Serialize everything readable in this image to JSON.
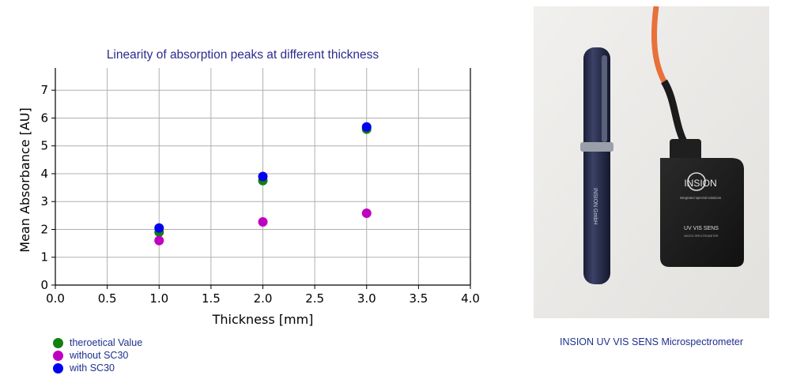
{
  "chart_data": {
    "type": "scatter",
    "title": "Linearity of absorption peaks at different thickness",
    "xlabel": "Thickness [mm]",
    "ylabel": "Mean Absorbance [AU]",
    "xlim": [
      0.0,
      4.0
    ],
    "ylim": [
      0,
      7.8
    ],
    "xticks": [
      "0.0",
      "0.5",
      "1.0",
      "1.5",
      "2.0",
      "2.5",
      "3.0",
      "3.5",
      "4.0"
    ],
    "yticks": [
      "0",
      "1",
      "2",
      "3",
      "4",
      "5",
      "6",
      "7"
    ],
    "grid": true,
    "legend_position": "bottom-left",
    "series": [
      {
        "name": "theroetical Value",
        "color": "#118011",
        "x": [
          1.0,
          2.0,
          3.0
        ],
        "y": [
          1.9,
          3.75,
          5.6
        ]
      },
      {
        "name": "without SC30",
        "color": "#c000c0",
        "x": [
          1.0,
          2.0,
          3.0
        ],
        "y": [
          1.6,
          2.27,
          2.58
        ]
      },
      {
        "name": "with SC30",
        "color": "#0000ee",
        "x": [
          1.0,
          2.0,
          3.0
        ],
        "y": [
          2.05,
          3.9,
          5.68
        ]
      }
    ]
  },
  "photo": {
    "caption": "INSION UV VIS SENS Microspectrometer",
    "device_brand": "INSION",
    "device_tagline": "integrated spectral solutions",
    "device_model": "UV VIS SENS",
    "device_sub": "MICRO SPECTROMETER",
    "pen_text": "INSION GmbH"
  }
}
